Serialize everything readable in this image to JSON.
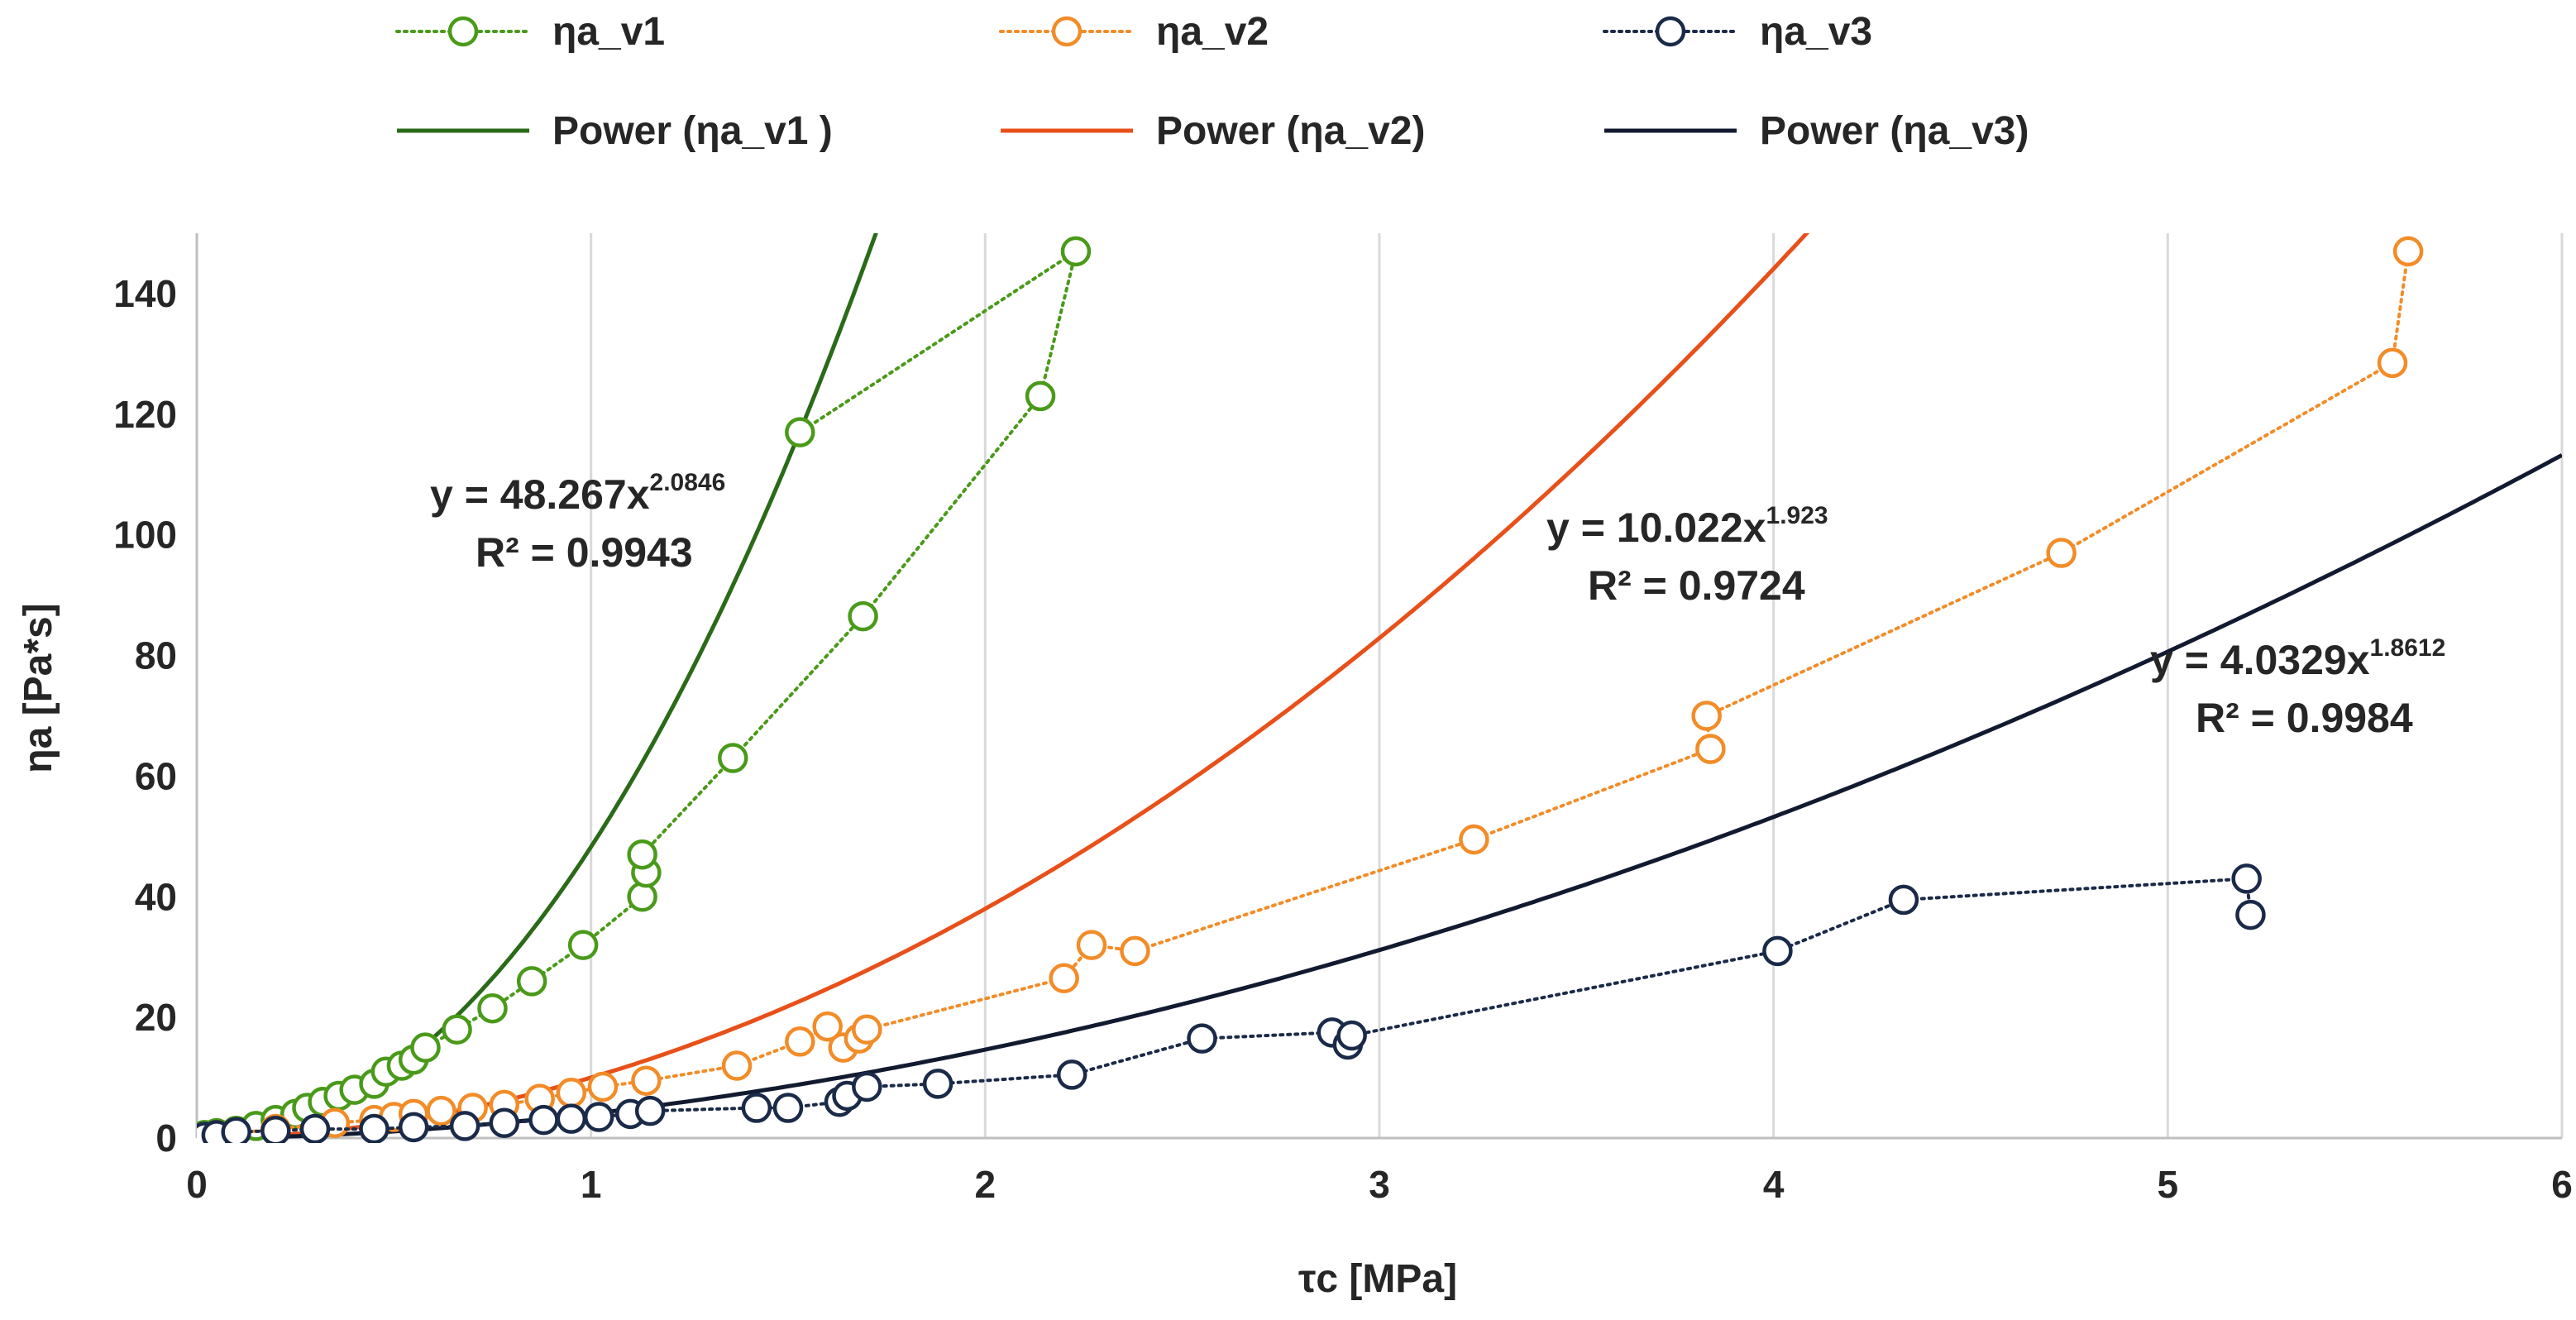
{
  "chart_data": {
    "type": "scatter",
    "xlabel": "τc [MPa]",
    "ylabel": "ηa [Pa*s]",
    "xlim": [
      0,
      6
    ],
    "ylim": [
      0,
      150
    ],
    "x_ticks": [
      0,
      1,
      2,
      3,
      4,
      5,
      6
    ],
    "y_ticks": [
      0,
      20,
      40,
      60,
      80,
      100,
      120,
      140
    ],
    "grid": "vertical",
    "legend_position": "top",
    "colors": {
      "v1": "#4a9a1a",
      "v2": "#f28c28",
      "v3": "#1a2a48",
      "fit_v1": "#2a6a18",
      "fit_v2": "#e8501a",
      "fit_v3": "#121a30"
    },
    "series": [
      {
        "name": "ηa_v1",
        "color_key": "v1",
        "marker": "open-circle",
        "line": "dotted",
        "points": [
          [
            0.02,
            0.5
          ],
          [
            0.05,
            0.8
          ],
          [
            0.1,
            1.2
          ],
          [
            0.15,
            2
          ],
          [
            0.2,
            3
          ],
          [
            0.25,
            4
          ],
          [
            0.28,
            5
          ],
          [
            0.32,
            6
          ],
          [
            0.36,
            7
          ],
          [
            0.4,
            8
          ],
          [
            0.45,
            9
          ],
          [
            0.48,
            11
          ],
          [
            0.52,
            12
          ],
          [
            0.55,
            13
          ],
          [
            0.58,
            15
          ],
          [
            0.66,
            18
          ],
          [
            0.75,
            21.5
          ],
          [
            0.85,
            26
          ],
          [
            0.98,
            32
          ],
          [
            1.13,
            40
          ],
          [
            1.14,
            44
          ],
          [
            1.13,
            47
          ],
          [
            1.36,
            63
          ],
          [
            1.69,
            86.5
          ],
          [
            2.14,
            123
          ],
          [
            2.23,
            147
          ],
          [
            1.53,
            117
          ]
        ]
      },
      {
        "name": "ηa_v2",
        "color_key": "v2",
        "marker": "open-circle",
        "line": "dotted",
        "points": [
          [
            0.05,
            0.5
          ],
          [
            0.2,
            1.5
          ],
          [
            0.35,
            2.5
          ],
          [
            0.45,
            3
          ],
          [
            0.5,
            3.5
          ],
          [
            0.55,
            4
          ],
          [
            0.62,
            4.5
          ],
          [
            0.7,
            5
          ],
          [
            0.78,
            5.5
          ],
          [
            0.87,
            6.5
          ],
          [
            0.95,
            7.5
          ],
          [
            1.03,
            8.5
          ],
          [
            1.14,
            9.5
          ],
          [
            1.37,
            12
          ],
          [
            1.53,
            16
          ],
          [
            1.6,
            18.5
          ],
          [
            1.64,
            15
          ],
          [
            1.68,
            16.5
          ],
          [
            1.7,
            18
          ],
          [
            2.2,
            26.5
          ],
          [
            2.27,
            32
          ],
          [
            2.38,
            31
          ],
          [
            3.24,
            49.5
          ],
          [
            3.84,
            64.5
          ],
          [
            3.83,
            70
          ],
          [
            4.73,
            97
          ],
          [
            5.57,
            128.5
          ],
          [
            5.61,
            147
          ]
        ]
      },
      {
        "name": "ηa_v3",
        "color_key": "v3",
        "marker": "open-circle",
        "line": "dotted",
        "points": [
          [
            0.02,
            0.2
          ],
          [
            0.05,
            0.5
          ],
          [
            0.1,
            1
          ],
          [
            0.2,
            1.2
          ],
          [
            0.3,
            1.5
          ],
          [
            0.45,
            1.5
          ],
          [
            0.55,
            1.8
          ],
          [
            0.68,
            2
          ],
          [
            0.78,
            2.5
          ],
          [
            0.88,
            3
          ],
          [
            0.95,
            3.2
          ],
          [
            1.02,
            3.5
          ],
          [
            1.1,
            4
          ],
          [
            1.15,
            4.5
          ],
          [
            1.42,
            5
          ],
          [
            1.5,
            5
          ],
          [
            1.63,
            6
          ],
          [
            1.65,
            7
          ],
          [
            1.7,
            8.5
          ],
          [
            1.88,
            9
          ],
          [
            2.22,
            10.5
          ],
          [
            2.55,
            16.5
          ],
          [
            2.88,
            17.5
          ],
          [
            2.92,
            15.5
          ],
          [
            2.93,
            17
          ],
          [
            4.01,
            31
          ],
          [
            4.33,
            39.5
          ],
          [
            5.2,
            43
          ],
          [
            5.21,
            37
          ]
        ]
      }
    ],
    "fits": [
      {
        "name": "Power (ηa_v1  )",
        "color_key": "fit_v1",
        "a": 48.267,
        "b": 2.0846,
        "equation": "y = 48.267x",
        "exponent": "2.0846",
        "r2": "R² = 0.9943"
      },
      {
        "name": "Power (ηa_v2)",
        "color_key": "fit_v2",
        "a": 10.022,
        "b": 1.923,
        "equation": "y = 10.022x",
        "exponent": "1.923",
        "r2": "R² = 0.9724"
      },
      {
        "name": "Power (ηa_v3)",
        "color_key": "fit_v3",
        "a": 4.0329,
        "b": 1.8612,
        "equation": "y = 4.0329x",
        "exponent": "1.8612",
        "r2": "R² = 0.9984"
      }
    ]
  }
}
